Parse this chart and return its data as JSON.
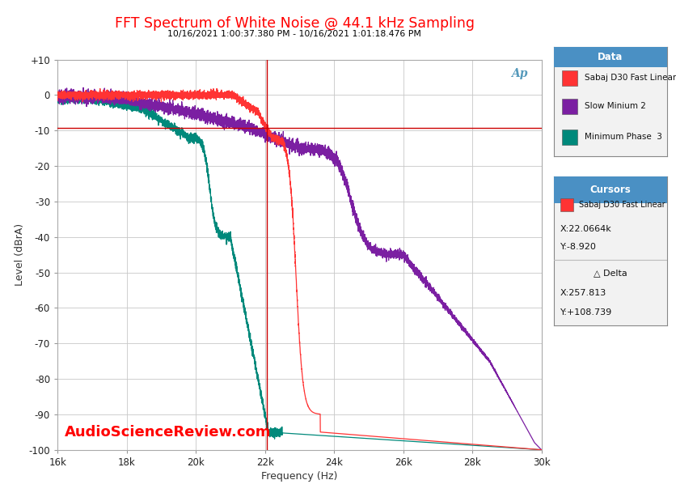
{
  "title": "FFT Spectrum of White Noise @ 44.1 kHz Sampling",
  "subtitle": "10/16/2021 1:00:37.380 PM - 10/16/2021 1:01:18.476 PM",
  "xlabel": "Frequency (Hz)",
  "ylabel": "Level (dBrA)",
  "xlim": [
    16000,
    30000
  ],
  "ylim": [
    -100,
    10
  ],
  "yticks": [
    10,
    0,
    -10,
    -20,
    -30,
    -40,
    -50,
    -60,
    -70,
    -80,
    -90,
    -100
  ],
  "ytick_labels": [
    "+10",
    "0",
    "-10",
    "-20",
    "-30",
    "-40",
    "-50",
    "-60",
    "-70",
    "-80",
    "-90",
    "-100"
  ],
  "xticks": [
    16000,
    18000,
    20000,
    22000,
    24000,
    26000,
    28000,
    30000
  ],
  "xtick_labels": [
    "16k",
    "18k",
    "20k",
    "22k",
    "24k",
    "26k",
    "28k",
    "30k"
  ],
  "title_color": "#FF0000",
  "subtitle_color": "#000000",
  "background_color": "#FFFFFF",
  "plot_bg_color": "#FFFFFF",
  "grid_color": "#C8C8C8",
  "watermark": "AudioScienceReview.com",
  "watermark_color": "#FF0000",
  "cursor_x": 22066.4,
  "cursor_y": -8.92,
  "vline_x": 22066.4,
  "hline_y": -9.2,
  "series": [
    {
      "name": "Sabaj D30 Fast Linear",
      "color": "#FF3333",
      "noise_amp": 0.55
    },
    {
      "name": "Slow Minium 2",
      "color": "#7B1FA2",
      "noise_amp": 0.8
    },
    {
      "name": "Minimum Phase  3",
      "color": "#00897B",
      "noise_amp": 0.6
    }
  ],
  "legend_title": "Data",
  "cursor_box_title": "Cursors",
  "cursor_label": "Sabaj D30 Fast Linear",
  "cursor_x_label": "X:22.0664k",
  "cursor_y_label": "Y:-8.920",
  "delta_label": "△ Delta",
  "delta_x_label": "X:257.813",
  "delta_y_label": "Y:+108.739",
  "legend_header_color": "#4A90C4",
  "ap_logo_color": "#5599BB"
}
